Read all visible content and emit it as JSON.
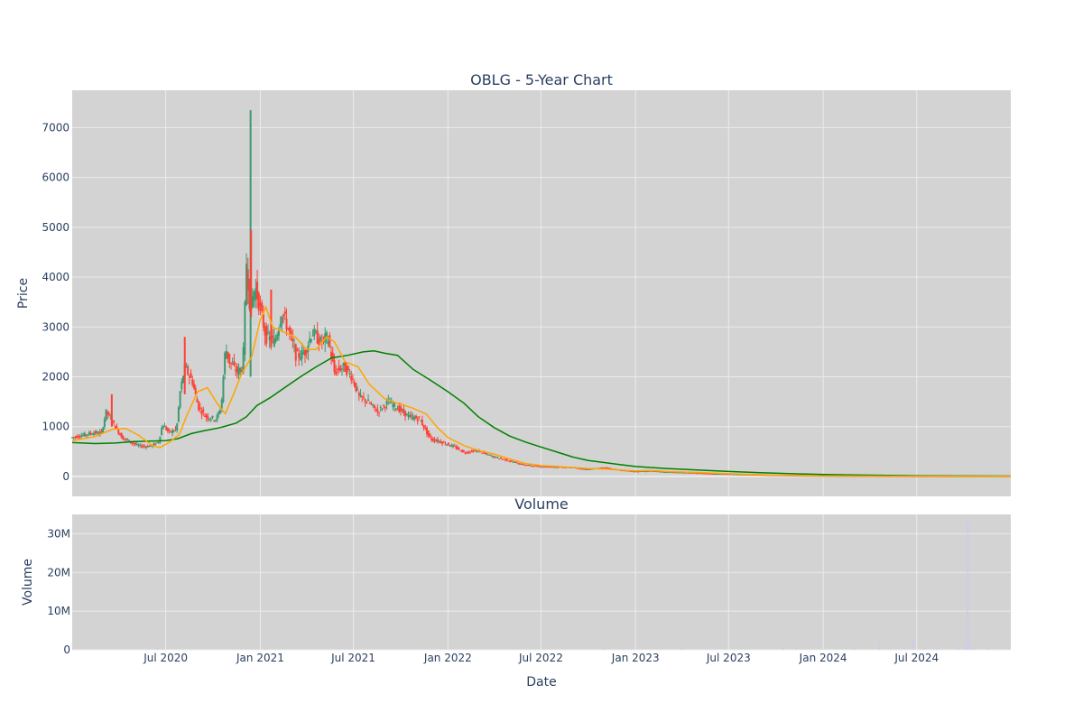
{
  "chart_data": {
    "title": "OBLG - 5-Year Chart",
    "subplots": [
      {
        "type": "candlestick",
        "ylabel": "Price",
        "ylim": [
          -400,
          7750
        ],
        "yticks": [
          0,
          1000,
          2000,
          3000,
          4000,
          5000,
          6000,
          7000
        ],
        "grid": true,
        "colors": {
          "up": "#3d9970",
          "down": "#ff4136",
          "ma_fast": "#ffa500",
          "ma_slow": "#008000",
          "plot_bg": "#d3d3d3",
          "grid": "#ebebeb"
        },
        "price_series": {
          "name": "",
          "points": [
            [
              "2020-01-02",
              780
            ],
            [
              "2020-01-20",
              820
            ],
            [
              "2020-02-10",
              870
            ],
            [
              "2020-03-01",
              880
            ],
            [
              "2020-03-10",
              1300
            ],
            [
              "2020-03-25",
              1050
            ],
            [
              "2020-04-10",
              780
            ],
            [
              "2020-04-25",
              700
            ],
            [
              "2020-05-10",
              620
            ],
            [
              "2020-05-25",
              600
            ],
            [
              "2020-06-08",
              620
            ],
            [
              "2020-06-20",
              700
            ],
            [
              "2020-06-28",
              1050
            ],
            [
              "2020-07-10",
              880
            ],
            [
              "2020-07-25",
              950
            ],
            [
              "2020-08-01",
              1700
            ],
            [
              "2020-08-10",
              2200
            ],
            [
              "2020-08-25",
              1900
            ],
            [
              "2020-09-05",
              1400
            ],
            [
              "2020-09-20",
              1200
            ],
            [
              "2020-10-10",
              1150
            ],
            [
              "2020-10-20",
              1400
            ],
            [
              "2020-10-28",
              2600
            ],
            [
              "2020-11-05",
              2300
            ],
            [
              "2020-11-20",
              2100
            ],
            [
              "2020-12-01",
              2200
            ],
            [
              "2020-12-08",
              4300
            ],
            [
              "2020-12-15",
              3400
            ],
            [
              "2020-12-25",
              3800
            ],
            [
              "2021-01-05",
              3300
            ],
            [
              "2021-01-15",
              2800
            ],
            [
              "2021-02-01",
              2700
            ],
            [
              "2021-02-15",
              3300
            ],
            [
              "2021-03-01",
              2900
            ],
            [
              "2021-03-15",
              2400
            ],
            [
              "2021-04-01",
              2500
            ],
            [
              "2021-04-15",
              2900
            ],
            [
              "2021-05-01",
              2700
            ],
            [
              "2021-05-15",
              2800
            ],
            [
              "2021-05-28",
              2100
            ],
            [
              "2021-06-15",
              2200
            ],
            [
              "2021-07-01",
              2000
            ],
            [
              "2021-07-15",
              1600
            ],
            [
              "2021-08-01",
              1500
            ],
            [
              "2021-08-20",
              1300
            ],
            [
              "2021-09-10",
              1500
            ],
            [
              "2021-10-01",
              1350
            ],
            [
              "2021-10-20",
              1200
            ],
            [
              "2021-11-10",
              1150
            ],
            [
              "2021-12-01",
              750
            ],
            [
              "2021-12-20",
              700
            ],
            [
              "2022-01-15",
              600
            ],
            [
              "2022-02-05",
              480
            ],
            [
              "2022-03-01",
              520
            ],
            [
              "2022-04-01",
              400
            ],
            [
              "2022-05-01",
              320
            ],
            [
              "2022-06-01",
              230
            ],
            [
              "2022-07-01",
              200
            ],
            [
              "2022-08-01",
              190
            ],
            [
              "2022-09-01",
              180
            ],
            [
              "2022-10-01",
              140
            ],
            [
              "2022-11-01",
              180
            ],
            [
              "2022-12-01",
              130
            ],
            [
              "2023-01-01",
              100
            ],
            [
              "2023-02-01",
              110
            ],
            [
              "2023-03-01",
              90
            ],
            [
              "2023-04-01",
              80
            ],
            [
              "2023-05-01",
              70
            ],
            [
              "2023-06-01",
              55
            ],
            [
              "2023-08-01",
              40
            ],
            [
              "2023-10-01",
              25
            ],
            [
              "2023-12-01",
              15
            ],
            [
              "2024-02-01",
              10
            ],
            [
              "2024-05-01",
              6
            ],
            [
              "2024-08-01",
              4
            ],
            [
              "2024-12-31",
              3
            ]
          ]
        },
        "spikes": [
          [
            "2020-03-18",
            1650,
            1000
          ],
          [
            "2020-08-07",
            2800,
            1650
          ],
          [
            "2020-12-13",
            7350,
            2000
          ],
          [
            "2020-12-14",
            4950,
            3200
          ],
          [
            "2021-01-22",
            3750,
            2600
          ]
        ],
        "ma_fast": {
          "name": "",
          "points": [
            [
              "2020-01-01",
              720
            ],
            [
              "2020-02-15",
              800
            ],
            [
              "2020-03-20",
              950
            ],
            [
              "2020-04-15",
              960
            ],
            [
              "2020-05-10",
              820
            ],
            [
              "2020-06-05",
              620
            ],
            [
              "2020-06-20",
              580
            ],
            [
              "2020-07-10",
              700
            ],
            [
              "2020-07-28",
              850
            ],
            [
              "2020-08-10",
              1200
            ],
            [
              "2020-09-01",
              1700
            ],
            [
              "2020-09-20",
              1780
            ],
            [
              "2020-10-10",
              1450
            ],
            [
              "2020-10-25",
              1260
            ],
            [
              "2020-11-10",
              1650
            ],
            [
              "2020-11-25",
              2050
            ],
            [
              "2020-12-15",
              2400
            ],
            [
              "2021-01-01",
              3150
            ],
            [
              "2021-01-12",
              3400
            ],
            [
              "2021-01-25",
              3000
            ],
            [
              "2021-02-15",
              2900
            ],
            [
              "2021-03-10",
              2800
            ],
            [
              "2021-04-01",
              2550
            ],
            [
              "2021-04-20",
              2550
            ],
            [
              "2021-05-10",
              2800
            ],
            [
              "2021-05-25",
              2700
            ],
            [
              "2021-06-15",
              2300
            ],
            [
              "2021-07-10",
              2200
            ],
            [
              "2021-08-01",
              1850
            ],
            [
              "2021-09-01",
              1550
            ],
            [
              "2021-10-01",
              1450
            ],
            [
              "2021-10-25",
              1370
            ],
            [
              "2021-11-20",
              1250
            ],
            [
              "2021-12-10",
              1000
            ],
            [
              "2022-01-01",
              780
            ],
            [
              "2022-02-01",
              620
            ],
            [
              "2022-03-01",
              520
            ],
            [
              "2022-04-01",
              450
            ],
            [
              "2022-05-01",
              350
            ],
            [
              "2022-06-01",
              260
            ],
            [
              "2022-07-01",
              220
            ],
            [
              "2022-08-01",
              200
            ],
            [
              "2022-09-01",
              180
            ],
            [
              "2022-10-01",
              160
            ],
            [
              "2022-11-01",
              150
            ],
            [
              "2022-12-01",
              130
            ],
            [
              "2023-01-01",
              110
            ],
            [
              "2023-02-01",
              120
            ],
            [
              "2023-03-01",
              100
            ],
            [
              "2023-05-01",
              80
            ],
            [
              "2023-07-01",
              55
            ],
            [
              "2023-10-01",
              25
            ],
            [
              "2024-01-01",
              12
            ],
            [
              "2024-06-01",
              5
            ],
            [
              "2024-12-31",
              3
            ]
          ]
        },
        "ma_slow": {
          "name": "",
          "points": [
            [
              "2020-01-01",
              680
            ],
            [
              "2020-02-15",
              660
            ],
            [
              "2020-03-25",
              670
            ],
            [
              "2020-05-01",
              700
            ],
            [
              "2020-06-01",
              710
            ],
            [
              "2020-07-01",
              720
            ],
            [
              "2020-07-25",
              760
            ],
            [
              "2020-08-20",
              860
            ],
            [
              "2020-09-15",
              920
            ],
            [
              "2020-10-15",
              980
            ],
            [
              "2020-11-15",
              1070
            ],
            [
              "2020-12-05",
              1200
            ],
            [
              "2020-12-25",
              1420
            ],
            [
              "2021-01-20",
              1580
            ],
            [
              "2021-02-20",
              1800
            ],
            [
              "2021-03-20",
              2000
            ],
            [
              "2021-04-20",
              2200
            ],
            [
              "2021-05-20",
              2380
            ],
            [
              "2021-06-20",
              2430
            ],
            [
              "2021-07-20",
              2500
            ],
            [
              "2021-08-10",
              2520
            ],
            [
              "2021-09-01",
              2470
            ],
            [
              "2021-09-25",
              2430
            ],
            [
              "2021-10-25",
              2150
            ],
            [
              "2021-11-25",
              1950
            ],
            [
              "2022-01-01",
              1700
            ],
            [
              "2022-02-01",
              1470
            ],
            [
              "2022-03-01",
              1200
            ],
            [
              "2022-04-01",
              980
            ],
            [
              "2022-05-01",
              810
            ],
            [
              "2022-06-01",
              690
            ],
            [
              "2022-07-01",
              590
            ],
            [
              "2022-08-01",
              490
            ],
            [
              "2022-09-01",
              390
            ],
            [
              "2022-10-01",
              320
            ],
            [
              "2022-11-01",
              280
            ],
            [
              "2022-12-01",
              240
            ],
            [
              "2023-01-01",
              200
            ],
            [
              "2023-03-01",
              160
            ],
            [
              "2023-05-01",
              130
            ],
            [
              "2023-07-01",
              100
            ],
            [
              "2023-09-01",
              75
            ],
            [
              "2023-11-01",
              55
            ],
            [
              "2024-01-01",
              40
            ],
            [
              "2024-04-01",
              25
            ],
            [
              "2024-07-01",
              15
            ],
            [
              "2024-12-31",
              8
            ]
          ]
        }
      },
      {
        "type": "bar",
        "title": "Volume",
        "ylabel": "Volume",
        "xlabel": "Date",
        "ylim": [
          0,
          35000000
        ],
        "yticks": [
          0,
          10000000,
          20000000,
          30000000
        ],
        "ytick_labels": [
          "0",
          "10M",
          "20M",
          "30M"
        ],
        "grid": true,
        "bar_color": "#ccccee",
        "values": [
          [
            "2020-06-15",
            300000
          ],
          [
            "2021-01-10",
            250000
          ],
          [
            "2021-06-01",
            200000
          ],
          [
            "2022-11-01",
            300000
          ],
          [
            "2023-04-01",
            400000
          ],
          [
            "2023-10-15",
            700000
          ],
          [
            "2023-11-10",
            300000
          ],
          [
            "2024-03-01",
            400000
          ],
          [
            "2024-04-20",
            1800000
          ],
          [
            "2024-05-10",
            600000
          ],
          [
            "2024-06-25",
            3200000
          ],
          [
            "2024-07-15",
            500000
          ],
          [
            "2024-08-10",
            700000
          ],
          [
            "2024-09-20",
            1300000
          ],
          [
            "2024-10-03",
            1800000
          ],
          [
            "2024-10-08",
            33500000
          ],
          [
            "2024-10-12",
            2000000
          ],
          [
            "2024-10-20",
            600000
          ],
          [
            "2024-11-15",
            400000
          ],
          [
            "2024-12-10",
            300000
          ]
        ]
      }
    ],
    "x_range": [
      "2020-01-01",
      "2024-12-31"
    ],
    "xticks": [
      "2020-07-01",
      "2021-01-01",
      "2021-07-01",
      "2022-01-01",
      "2022-07-01",
      "2023-01-01",
      "2023-07-01",
      "2024-01-01",
      "2024-07-01"
    ],
    "xtick_labels": [
      "Jul 2020",
      "Jan 2021",
      "Jul 2021",
      "Jan 2022",
      "Jul 2022",
      "Jan 2023",
      "Jul 2023",
      "Jan 2024",
      "Jul 2024"
    ]
  }
}
